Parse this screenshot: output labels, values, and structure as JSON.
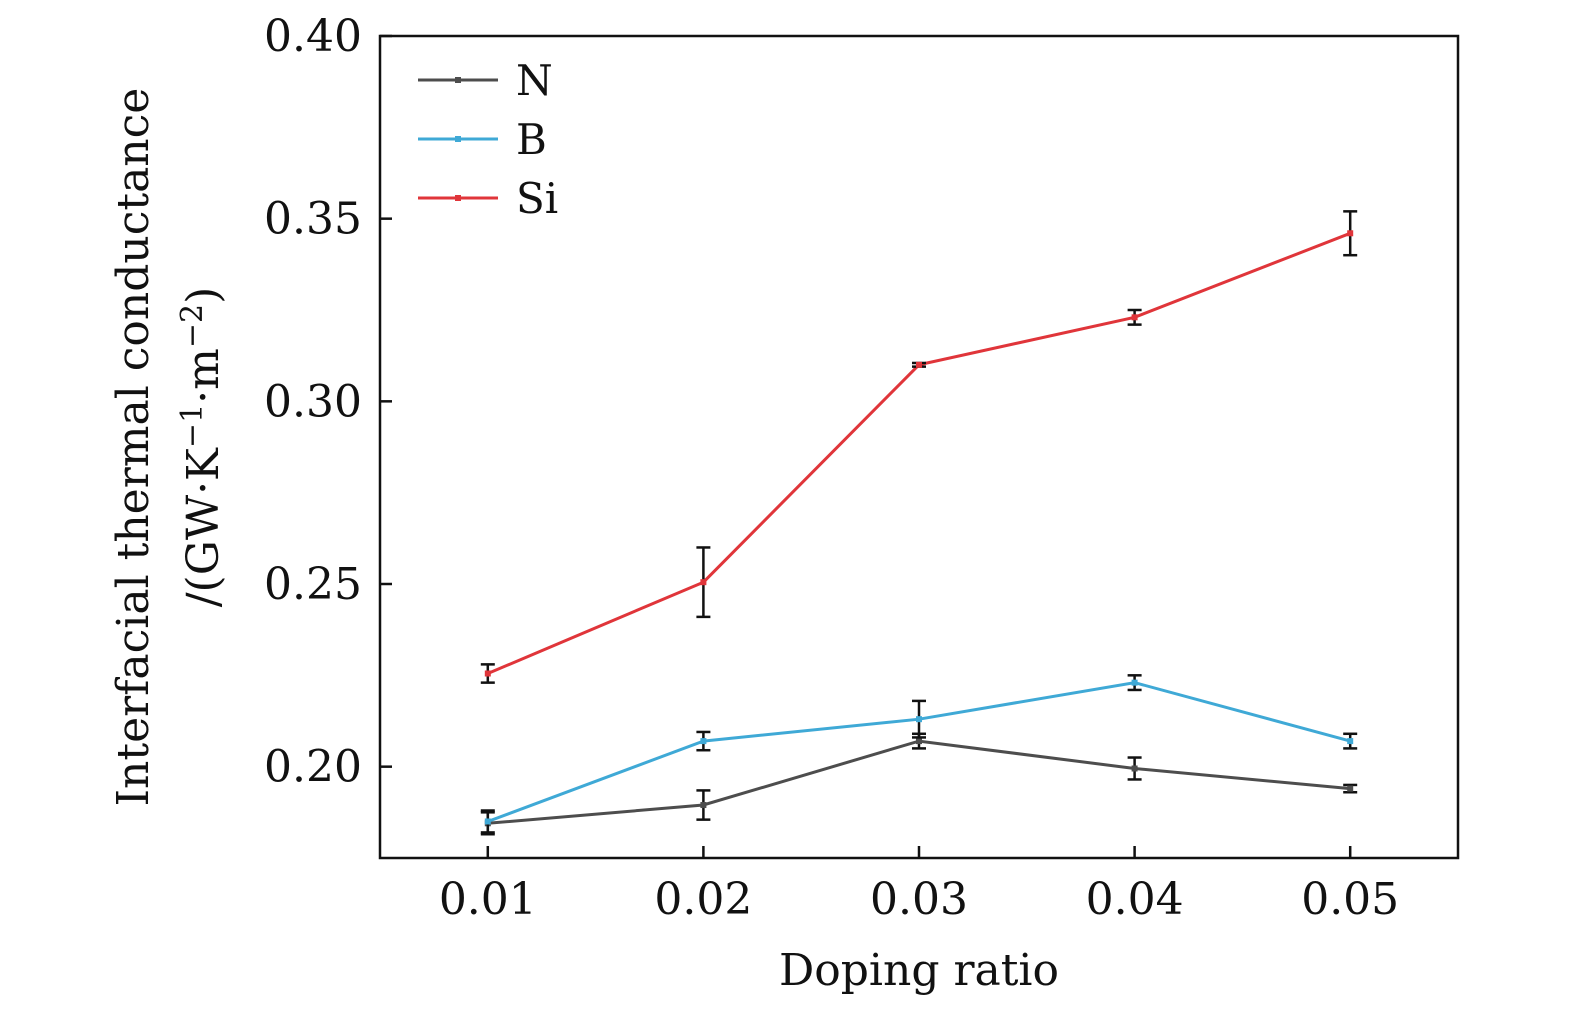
{
  "chart_data": {
    "type": "line",
    "title": "",
    "xlabel": "Doping ratio",
    "ylabel_line1": "Interfacial thermal conductance",
    "ylabel_line2_prefix": "/(GW·K",
    "ylabel_sup1": "−1",
    "ylabel_mid": "·m",
    "ylabel_sup2": "−2",
    "ylabel_suffix": ")",
    "x": [
      0.01,
      0.02,
      0.03,
      0.04,
      0.05
    ],
    "x_tick_labels": [
      "0.01",
      "0.02",
      "0.03",
      "0.04",
      "0.05"
    ],
    "xlim": [
      0.005,
      0.055
    ],
    "ylim": [
      0.175,
      0.4
    ],
    "y_ticks": [
      0.2,
      0.25,
      0.3,
      0.35,
      0.4
    ],
    "y_tick_labels": [
      "0.20",
      "0.25",
      "0.30",
      "0.35",
      "0.40"
    ],
    "grid": false,
    "legend_position": "top-left",
    "series": [
      {
        "name": "N",
        "color": "#4d4d4d",
        "values": [
          0.1845,
          0.1895,
          0.207,
          0.1995,
          0.194
        ],
        "errors": [
          0.003,
          0.004,
          0.002,
          0.003,
          0.001
        ]
      },
      {
        "name": "B",
        "color": "#3fa9d6",
        "values": [
          0.185,
          0.207,
          0.213,
          0.223,
          0.207
        ],
        "errors": [
          0.003,
          0.0025,
          0.005,
          0.002,
          0.002
        ]
      },
      {
        "name": "Si",
        "color": "#e0353a",
        "values": [
          0.2255,
          0.2505,
          0.31,
          0.323,
          0.346
        ],
        "errors": [
          0.0025,
          0.0095,
          0.0005,
          0.002,
          0.006
        ]
      }
    ]
  }
}
